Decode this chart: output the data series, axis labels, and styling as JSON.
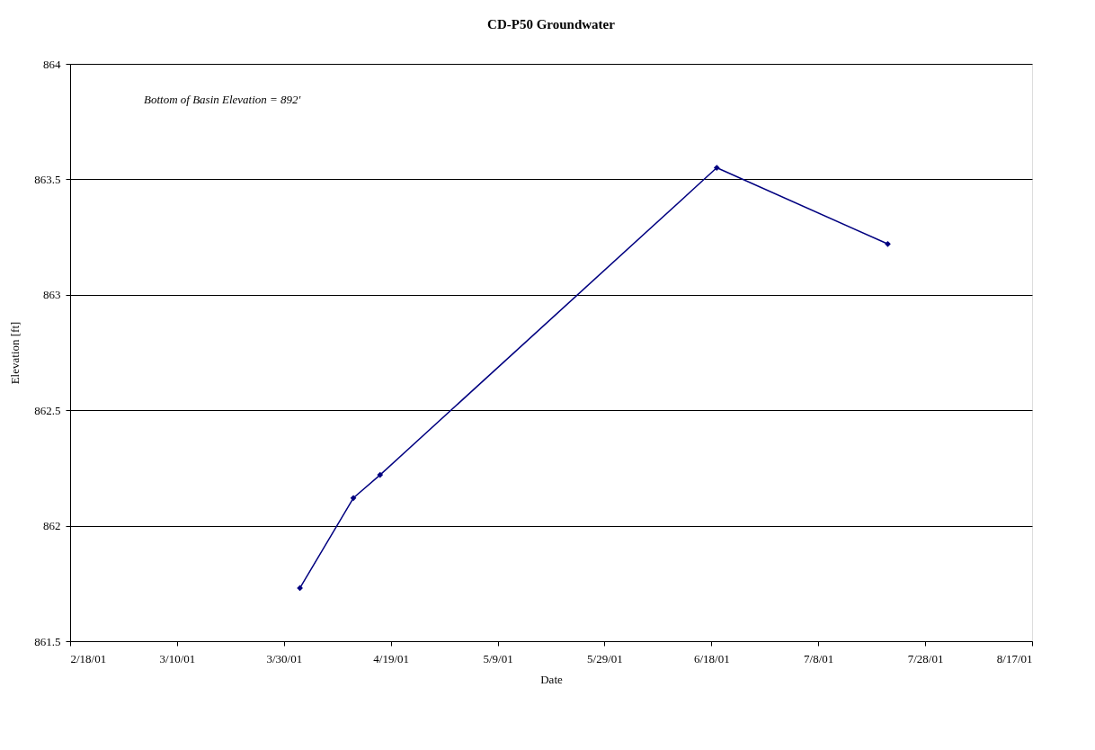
{
  "chart_data": {
    "type": "line",
    "title": "CD-P50 Groundwater",
    "xlabel": "Date",
    "ylabel": "Elevation [ft]",
    "annotations": [
      "Bottom of Basin Elevation  = 892'"
    ],
    "series": [
      {
        "color": "#000080",
        "x": [
          "2001-04-02",
          "2001-04-12",
          "2001-04-17",
          "2001-06-19",
          "2001-07-21"
        ],
        "values": [
          861.73,
          862.12,
          862.22,
          863.55,
          863.22
        ]
      }
    ],
    "xlim": [
      "2001-02-18",
      "2001-08-17"
    ],
    "xticks": [
      {
        "value": "2001-02-18",
        "label": "2/18/01"
      },
      {
        "value": "2001-03-10",
        "label": "3/10/01"
      },
      {
        "value": "2001-03-30",
        "label": "3/30/01"
      },
      {
        "value": "2001-04-19",
        "label": "4/19/01"
      },
      {
        "value": "2001-05-09",
        "label": "5/9/01"
      },
      {
        "value": "2001-05-29",
        "label": "5/29/01"
      },
      {
        "value": "2001-06-18",
        "label": "6/18/01"
      },
      {
        "value": "2001-07-08",
        "label": "7/8/01"
      },
      {
        "value": "2001-07-28",
        "label": "7/28/01"
      },
      {
        "value": "2001-08-17",
        "label": "8/17/01"
      }
    ],
    "ylim": [
      861.5,
      864
    ],
    "yticks": [
      861.5,
      862,
      862.5,
      863,
      863.5,
      864
    ],
    "grid": "y",
    "marker": "diamond",
    "line_style": "solid"
  }
}
